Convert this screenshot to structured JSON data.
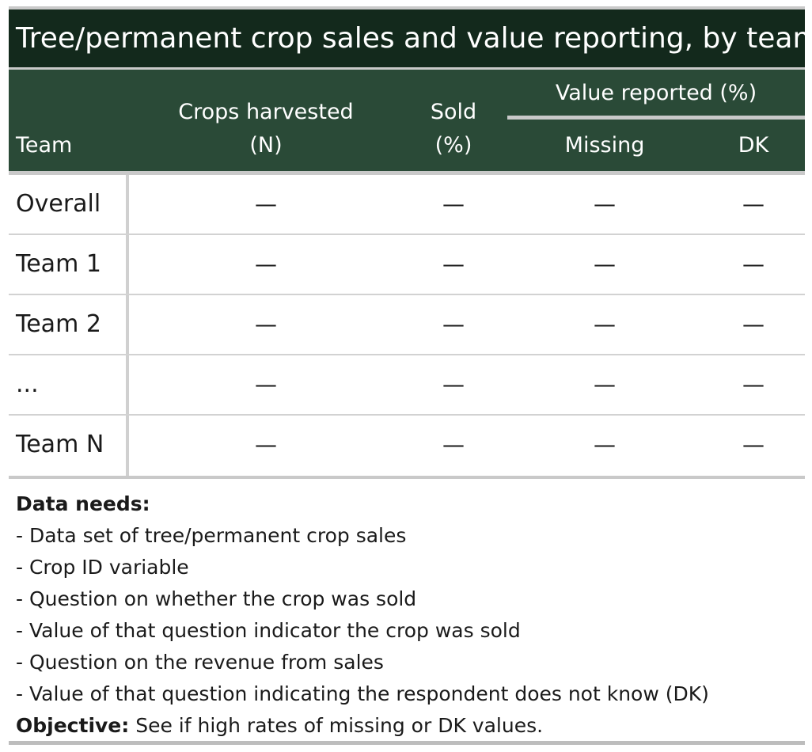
{
  "title": "Tree/permanent crop sales and value reporting, by team",
  "header": {
    "team": "Team",
    "crops_line1": "Crops harvested",
    "crops_line2": "(N)",
    "sold_line1": "Sold",
    "sold_line2": "(%)",
    "value_group": "Value reported (%)",
    "missing": "Missing",
    "dk": "DK"
  },
  "rows": [
    {
      "team": "Overall",
      "crops": "—",
      "sold": "—",
      "missing": "—",
      "dk": "—"
    },
    {
      "team": "Team 1",
      "crops": "—",
      "sold": "—",
      "missing": "—",
      "dk": "—"
    },
    {
      "team": "Team 2",
      "crops": "—",
      "sold": "—",
      "missing": "—",
      "dk": "—"
    },
    {
      "team": "...",
      "crops": "—",
      "sold": "—",
      "missing": "—",
      "dk": "—"
    },
    {
      "team": "Team N",
      "crops": "—",
      "sold": "—",
      "missing": "—",
      "dk": "—"
    }
  ],
  "notes": {
    "data_needs_label": "Data needs:",
    "items": [
      "- Data set of tree/permanent crop sales",
      "- Crop ID variable",
      "- Question on whether the crop was sold",
      "- Value of that question indicator the crop was sold",
      "- Question on the revenue from sales",
      "- Value of that question indicating the respondent does not know (DK)"
    ],
    "objective_label": "Objective:",
    "objective_text": " See if high rates of missing or DK values."
  },
  "colors": {
    "title_bg": "#13291c",
    "header_bg": "#2a4a37",
    "rule": "#c9c9c9"
  }
}
